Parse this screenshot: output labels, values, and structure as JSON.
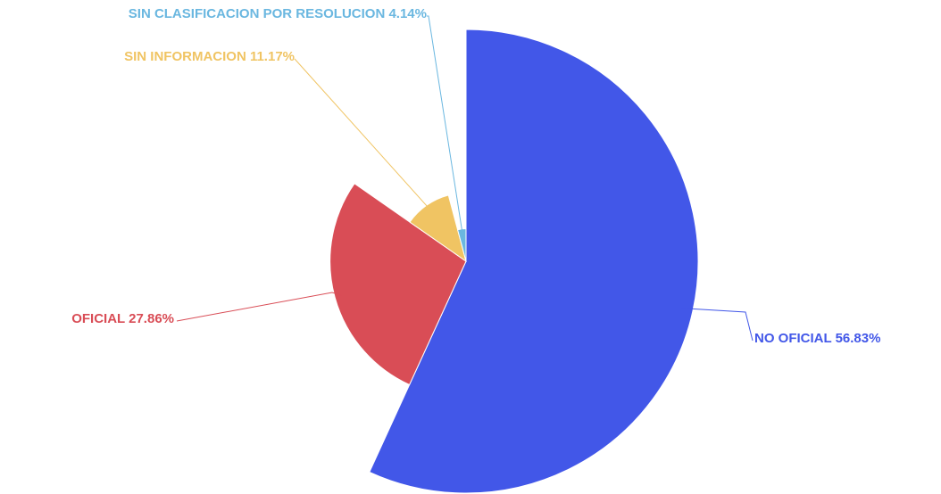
{
  "chart_data": {
    "type": "pie",
    "rose": true,
    "categories": [
      "NO OFICIAL",
      "OFICIAL",
      "SIN INFORMACION",
      "SIN CLASIFICACION POR RESOLUCION"
    ],
    "values": [
      56.83,
      27.86,
      11.17,
      4.14
    ],
    "value_labels": [
      "56.83%",
      "27.86%",
      "11.17%",
      "4.14%"
    ],
    "colors": [
      "#4257e8",
      "#d94d56",
      "#f0c463",
      "#6ab7e0"
    ]
  }
}
